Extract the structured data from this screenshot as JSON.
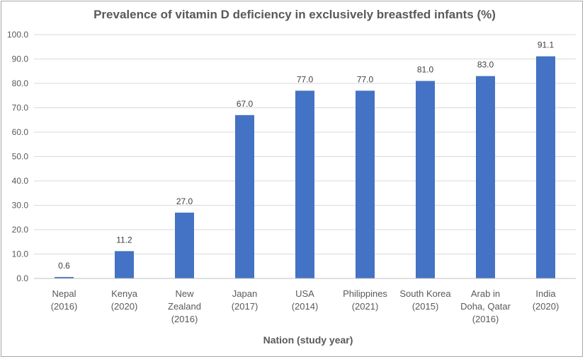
{
  "chart_data": {
    "type": "bar",
    "title": "Prevalence of vitamin D deficiency in exclusively breastfed infants (%)",
    "xlabel": "Nation (study year)",
    "ylabel": "",
    "ylim": [
      0,
      100
    ],
    "y_ticks": [
      "0.0",
      "10.0",
      "20.0",
      "30.0",
      "40.0",
      "50.0",
      "60.0",
      "70.0",
      "80.0",
      "90.0",
      "100.0"
    ],
    "grid": true,
    "bar_color": "#4472c4",
    "categories": [
      [
        "Nepal",
        "(2016)"
      ],
      [
        "Kenya",
        "(2020)"
      ],
      [
        "New",
        "Zealand",
        "(2016)"
      ],
      [
        "Japan",
        "(2017)"
      ],
      [
        "USA",
        "(2014)"
      ],
      [
        "Philippines",
        "(2021)"
      ],
      [
        "South Korea",
        "(2015)"
      ],
      [
        "Arab in",
        "Doha, Qatar",
        "(2016)"
      ],
      [
        "India",
        "(2020)"
      ]
    ],
    "values": [
      0.6,
      11.2,
      27.0,
      67.0,
      77.0,
      77.0,
      81.0,
      83.0,
      91.1
    ],
    "data_labels": [
      "0.6",
      "11.2",
      "27.0",
      "67.0",
      "77.0",
      "77.0",
      "81.0",
      "83.0",
      "91.1"
    ]
  }
}
